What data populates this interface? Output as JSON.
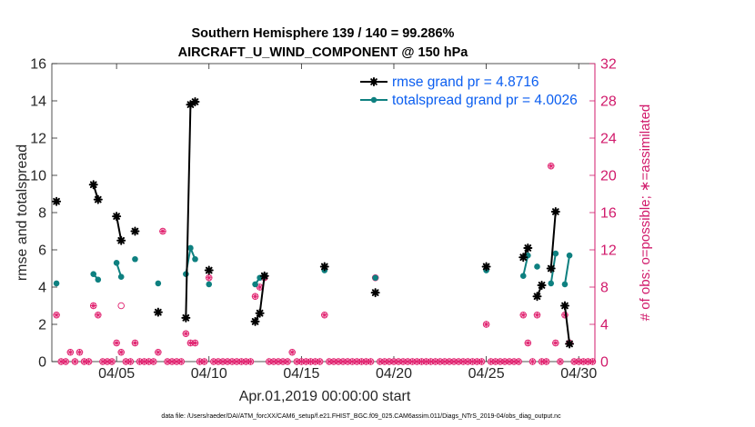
{
  "chart_data": {
    "type": "line",
    "title_line1": "Southern Hemisphere 139 / 140 = 99.286%",
    "title_line2": "AIRCRAFT_U_WIND_COMPONENT @ 150 hPa",
    "xlabel": "Apr.01,2019 00:00:00 start",
    "ylabel": "rmse and totalspread",
    "y2label": "# of obs: o=possible; ∗=assimilated",
    "footer": "data file: /Users/raeder/DAI/ATM_forcXX/CAM6_setup/f.e21.FHIST_BGC.f09_025.CAM6assim.011/Diags_NTrS_2019-04/obs_diag_output.nc",
    "xlim": [
      1.5,
      30.875
    ],
    "ylim": [
      0,
      16
    ],
    "y2lim": [
      0,
      32
    ],
    "x_ticks": [
      {
        "value": 5,
        "label": "04/05"
      },
      {
        "value": 10,
        "label": "04/10"
      },
      {
        "value": 15,
        "label": "04/15"
      },
      {
        "value": 20,
        "label": "04/20"
      },
      {
        "value": 25,
        "label": "04/25"
      },
      {
        "value": 30,
        "label": "04/30"
      }
    ],
    "y_ticks": [
      "0",
      "2",
      "4",
      "6",
      "8",
      "10",
      "12",
      "14",
      "16"
    ],
    "y2_ticks": [
      "0",
      "4",
      "8",
      "12",
      "16",
      "20",
      "24",
      "28",
      "32"
    ],
    "colors": {
      "rmse": "#000000",
      "spread": "#0e8080",
      "obs": "#e0206e",
      "legend_text": "#0b5ef0",
      "right_axis": "#d11a6b"
    },
    "series": [
      {
        "name": "rmse grand pr = 4.8716",
        "segments": [
          [
            [
              1.75,
              8.6
            ]
          ],
          [
            [
              3.75,
              9.5
            ],
            [
              4.0,
              8.7
            ]
          ],
          [
            [
              5.0,
              7.8
            ],
            [
              5.25,
              6.5
            ]
          ],
          [
            [
              6.0,
              7.0
            ]
          ],
          [
            [
              7.25,
              2.65
            ]
          ],
          [
            [
              8.75,
              2.35
            ],
            [
              9.0,
              13.8
            ],
            [
              9.25,
              13.95
            ]
          ],
          [
            [
              10.0,
              4.9
            ]
          ],
          [
            [
              12.5,
              2.15
            ],
            [
              12.75,
              2.6
            ],
            [
              13.0,
              4.6
            ]
          ],
          [
            [
              16.25,
              5.1
            ]
          ],
          [
            [
              19.0,
              3.7
            ]
          ],
          [
            [
              25.0,
              5.1
            ]
          ],
          [
            [
              27.0,
              5.6
            ],
            [
              27.25,
              6.1
            ]
          ],
          [
            [
              27.75,
              3.5
            ],
            [
              28.0,
              4.1
            ]
          ],
          [
            [
              28.5,
              5.0
            ],
            [
              28.75,
              8.05
            ]
          ],
          [
            [
              29.25,
              3.0
            ],
            [
              29.5,
              0.95
            ]
          ]
        ]
      },
      {
        "name": "totalspread grand pr = 4.0026",
        "segments": [
          [
            [
              1.75,
              4.2
            ]
          ],
          [
            [
              3.75,
              4.7
            ],
            [
              4.0,
              4.4
            ]
          ],
          [
            [
              5.0,
              5.3
            ],
            [
              5.25,
              4.55
            ]
          ],
          [
            [
              6.0,
              5.5
            ]
          ],
          [
            [
              7.25,
              4.2
            ]
          ],
          [
            [
              8.75,
              4.7
            ],
            [
              9.0,
              6.1
            ],
            [
              9.25,
              5.5
            ]
          ],
          [
            [
              10.0,
              4.15
            ]
          ],
          [
            [
              12.5,
              4.15
            ],
            [
              12.75,
              4.5
            ],
            [
              13.0,
              4.6
            ]
          ],
          [
            [
              16.25,
              4.9
            ]
          ],
          [
            [
              19.0,
              4.5
            ]
          ],
          [
            [
              25.0,
              4.9
            ]
          ],
          [
            [
              27.0,
              4.6
            ],
            [
              27.25,
              5.7
            ]
          ],
          [
            [
              27.75,
              5.1
            ]
          ],
          [
            [
              28.5,
              4.2
            ],
            [
              28.75,
              5.8
            ]
          ],
          [
            [
              29.25,
              4.15
            ],
            [
              29.5,
              5.7
            ]
          ]
        ]
      }
    ],
    "obs_assimilated": [
      [
        1.75,
        5
      ],
      [
        3.75,
        6
      ],
      [
        4.0,
        5
      ],
      [
        5.0,
        2
      ],
      [
        5.25,
        1
      ],
      [
        6.0,
        2
      ],
      [
        7.25,
        1
      ],
      [
        7.5,
        14
      ],
      [
        8.75,
        3
      ],
      [
        9.0,
        2
      ],
      [
        9.25,
        2
      ],
      [
        10.0,
        9
      ],
      [
        12.5,
        7
      ],
      [
        12.75,
        8
      ],
      [
        13.0,
        9
      ],
      [
        14.5,
        1
      ],
      [
        16.25,
        5
      ],
      [
        19.0,
        9
      ],
      [
        25.0,
        4
      ],
      [
        27.0,
        5
      ],
      [
        27.25,
        2
      ],
      [
        27.75,
        5
      ],
      [
        28.5,
        21
      ],
      [
        28.75,
        2
      ],
      [
        29.25,
        5
      ],
      [
        29.5,
        2
      ],
      [
        2.5,
        1
      ],
      [
        3.0,
        1
      ]
    ],
    "obs_possible": [
      [
        5.25,
        6
      ]
    ]
  }
}
